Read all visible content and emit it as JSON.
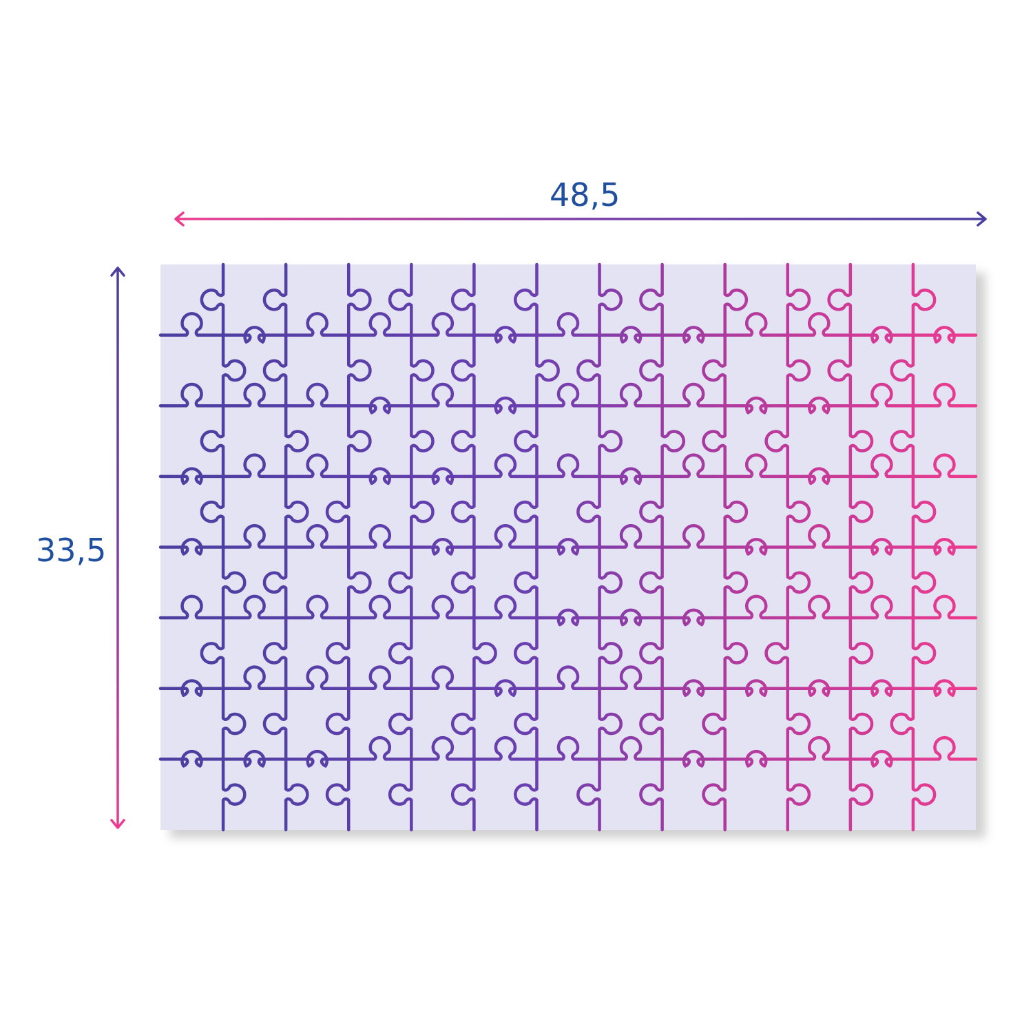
{
  "dimensions": {
    "width_label": "48,5",
    "height_label": "33,5"
  },
  "puzzle": {
    "columns": 13,
    "rows": 8,
    "background_color": "#e3e3f3"
  },
  "colors": {
    "blue": "#4a3fa0",
    "pink": "#ee3b8f",
    "label": "#1f4f9e"
  }
}
